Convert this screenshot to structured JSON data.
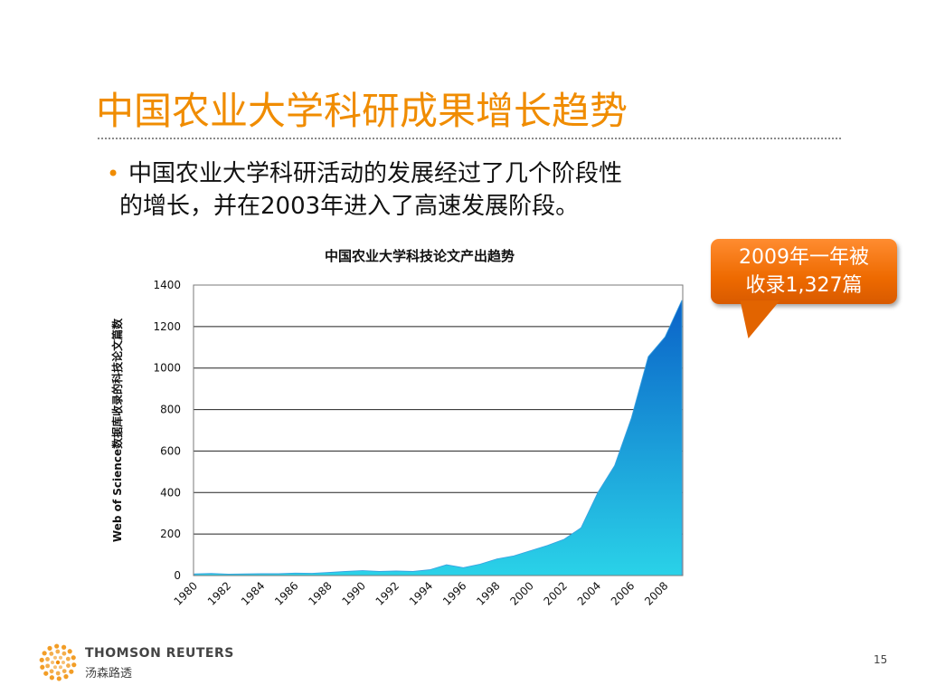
{
  "slide": {
    "title": "中国农业大学科研成果增长趋势",
    "bullet": {
      "line1": "中国农业大学科研活动的发展经过了几个阶段性",
      "line2": "的增长，并在2003年进入了高速发展阶段。"
    },
    "callout": {
      "line1": "2009年一年被",
      "line2": "收录1,327篇"
    },
    "footer": {
      "company_en": "THOMSON REUTERS",
      "company_cn": "汤森路透",
      "page_number": "15"
    },
    "colors": {
      "title": "#f08c00",
      "callout": "#ee6a00",
      "area_top": "#0a62c8",
      "area_bottom": "#2ad2e8"
    }
  },
  "chart_data": {
    "type": "area",
    "title": "中国农业大学科技论文产出趋势",
    "ylabel": "Web of Science数据库收录的科技论文篇数",
    "xlabel": "",
    "ylim": [
      0,
      1400
    ],
    "yticks": [
      0,
      200,
      400,
      600,
      800,
      1000,
      1200,
      1400
    ],
    "xticks": [
      "1980",
      "1982",
      "1984",
      "1986",
      "1988",
      "1990",
      "1992",
      "1994",
      "1996",
      "1998",
      "2000",
      "2002",
      "2004",
      "2006",
      "2008"
    ],
    "grid": "horizontal",
    "legend": "none",
    "x": [
      1980,
      1981,
      1982,
      1983,
      1984,
      1985,
      1986,
      1987,
      1988,
      1989,
      1990,
      1991,
      1992,
      1993,
      1994,
      1995,
      1996,
      1997,
      1998,
      1999,
      2000,
      2001,
      2002,
      2003,
      2004,
      2005,
      2006,
      2007,
      2008,
      2009
    ],
    "values": [
      8,
      10,
      7,
      8,
      9,
      9,
      12,
      11,
      15,
      20,
      24,
      20,
      22,
      20,
      28,
      52,
      38,
      55,
      80,
      95,
      120,
      145,
      175,
      230,
      400,
      530,
      760,
      1055,
      1150,
      1327
    ]
  }
}
